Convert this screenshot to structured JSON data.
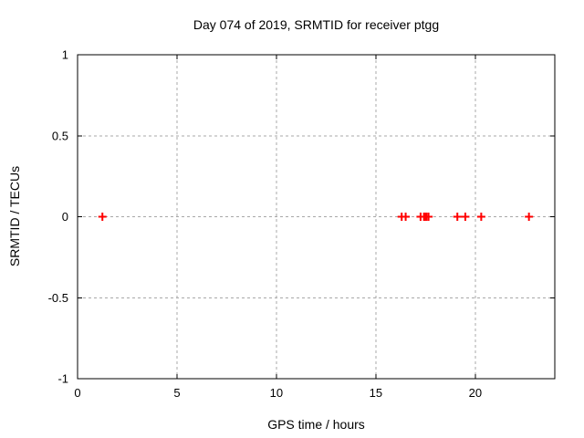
{
  "chart_data": {
    "type": "scatter",
    "title": "Day 074 of 2019, SRMTID for receiver ptgg",
    "xlabel": "GPS time / hours",
    "ylabel": "SRMTID / TECUs",
    "xlim": [
      0,
      24
    ],
    "ylim": [
      -1,
      1
    ],
    "xticks": [
      0,
      5,
      10,
      15,
      20
    ],
    "xtick_labels": [
      "0",
      "5",
      "10",
      "15",
      "20"
    ],
    "yticks": [
      -1,
      -0.5,
      0,
      0.5,
      1
    ],
    "ytick_labels": [
      "-1",
      "-0.5",
      "0",
      "0.5",
      "1"
    ],
    "grid": true,
    "legend": "none",
    "marker": "plus",
    "series": [
      {
        "name": "SRMTID",
        "color": "#ff0000",
        "x": [
          1.25,
          16.3,
          16.5,
          17.25,
          17.42,
          17.48,
          17.55,
          17.65,
          19.1,
          19.5,
          20.3,
          22.7
        ],
        "y": [
          0,
          0,
          0,
          0,
          0,
          0,
          0,
          0,
          0,
          0,
          0,
          0
        ]
      }
    ]
  },
  "colors": {
    "background": "#ffffff",
    "frame": "#000000",
    "grid": "#a8a8a8",
    "marker": "#ff0000"
  }
}
